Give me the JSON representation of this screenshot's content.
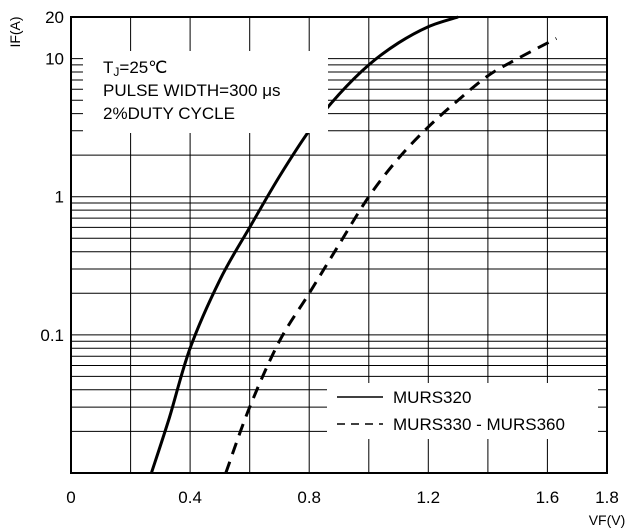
{
  "chart_data": {
    "type": "line",
    "title": "",
    "xlabel": "VF(V)",
    "ylabel": "IF(A)",
    "xlim": [
      0,
      1.8
    ],
    "ylim": [
      0.01,
      20
    ],
    "yscale": "log",
    "grid": true,
    "x_ticks": [
      "0",
      "0.4",
      "0.8",
      "1.2",
      "1.6",
      "1.8"
    ],
    "y_ticks": [
      {
        "value": 20,
        "label": "20"
      },
      {
        "value": 10,
        "label": "10"
      },
      {
        "value": 1,
        "label": "1"
      },
      {
        "value": 0.1,
        "label": "0.1"
      }
    ],
    "annotation_lines": [
      "TJ=25℃",
      "PULSE WIDTH=300 μs",
      "2%DUTY CYCLE"
    ],
    "legend_position": "bottom-right",
    "series": [
      {
        "name": "MURS320",
        "style": "solid",
        "color": "#000000",
        "points": [
          [
            0.27,
            0.01
          ],
          [
            0.33,
            0.025
          ],
          [
            0.4,
            0.08
          ],
          [
            0.5,
            0.25
          ],
          [
            0.6,
            0.6
          ],
          [
            0.7,
            1.4
          ],
          [
            0.8,
            3.0
          ],
          [
            0.9,
            5.5
          ],
          [
            1.0,
            9.0
          ],
          [
            1.1,
            13.0
          ],
          [
            1.2,
            17.0
          ],
          [
            1.3,
            20.0
          ]
        ]
      },
      {
        "name": "MURS330 - MURS360",
        "style": "dashed",
        "color": "#000000",
        "points": [
          [
            0.52,
            0.01
          ],
          [
            0.6,
            0.03
          ],
          [
            0.7,
            0.09
          ],
          [
            0.8,
            0.2
          ],
          [
            0.9,
            0.45
          ],
          [
            1.0,
            1.0
          ],
          [
            1.1,
            1.9
          ],
          [
            1.2,
            3.2
          ],
          [
            1.3,
            5.0
          ],
          [
            1.4,
            7.5
          ],
          [
            1.5,
            10.0
          ],
          [
            1.63,
            14.0
          ]
        ]
      }
    ]
  }
}
